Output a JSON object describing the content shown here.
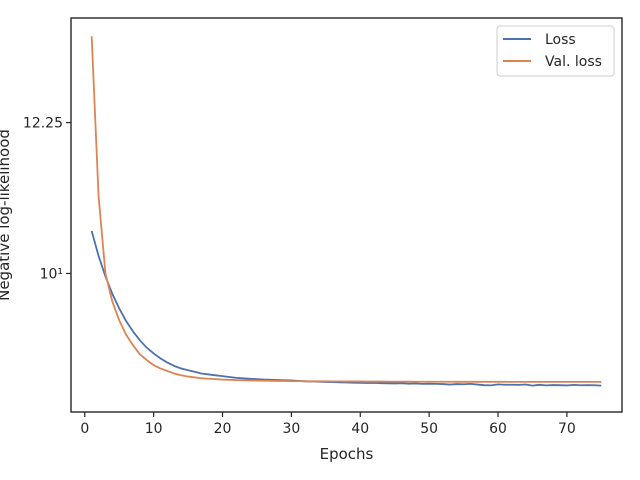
{
  "chart_data": {
    "type": "line",
    "title": "",
    "xlabel": "Epochs",
    "ylabel": "Negative log-likelihood",
    "yscale": "log",
    "xlim": [
      -2,
      78
    ],
    "ylim": [
      8.3,
      14.1
    ],
    "x_ticks": [
      0,
      10,
      20,
      30,
      40,
      50,
      60,
      70
    ],
    "x_tick_labels": [
      "0",
      "10",
      "20",
      "30",
      "40",
      "50",
      "60",
      "70"
    ],
    "y_ticks": [
      10.0,
      12.25
    ],
    "y_tick_labels": [
      "10¹",
      "12.25"
    ],
    "grid": false,
    "legend_position": "upper right",
    "x": [
      1,
      2,
      3,
      4,
      5,
      6,
      7,
      8,
      9,
      10,
      11,
      12,
      13,
      14,
      15,
      16,
      17,
      18,
      19,
      20,
      21,
      22,
      23,
      24,
      25,
      26,
      27,
      28,
      29,
      30,
      31,
      32,
      33,
      34,
      35,
      36,
      37,
      38,
      39,
      40,
      41,
      42,
      43,
      44,
      45,
      46,
      47,
      48,
      49,
      50,
      51,
      52,
      53,
      54,
      55,
      56,
      57,
      58,
      59,
      60,
      61,
      62,
      63,
      64,
      65,
      66,
      67,
      68,
      69,
      70,
      71,
      72,
      73,
      74,
      75
    ],
    "series": [
      {
        "name": "Loss",
        "color": "#4c72b0",
        "values": [
          10.59,
          10.24,
          9.96,
          9.73,
          9.54,
          9.38,
          9.25,
          9.14,
          9.05,
          8.98,
          8.92,
          8.87,
          8.83,
          8.8,
          8.78,
          8.76,
          8.74,
          8.73,
          8.72,
          8.71,
          8.7,
          8.69,
          8.685,
          8.68,
          8.675,
          8.67,
          8.668,
          8.665,
          8.662,
          8.66,
          8.655,
          8.65,
          8.648,
          8.645,
          8.642,
          8.64,
          8.638,
          8.636,
          8.634,
          8.632,
          8.63,
          8.632,
          8.628,
          8.626,
          8.625,
          8.627,
          8.622,
          8.625,
          8.62,
          8.622,
          8.62,
          8.618,
          8.612,
          8.618,
          8.616,
          8.62,
          8.612,
          8.605,
          8.603,
          8.614,
          8.61,
          8.61,
          8.608,
          8.613,
          8.6,
          8.609,
          8.603,
          8.606,
          8.605,
          8.602,
          8.608,
          8.604,
          8.605,
          8.604,
          8.6
        ]
      },
      {
        "name": "Val. loss",
        "color": "#dd8452",
        "values": [
          13.76,
          11.1,
          10.0,
          9.63,
          9.39,
          9.21,
          9.08,
          8.97,
          8.9,
          8.84,
          8.8,
          8.77,
          8.74,
          8.72,
          8.705,
          8.695,
          8.685,
          8.68,
          8.675,
          8.67,
          8.667,
          8.664,
          8.662,
          8.66,
          8.658,
          8.656,
          8.655,
          8.654,
          8.653,
          8.652,
          8.652,
          8.651,
          8.65,
          8.65,
          8.65,
          8.649,
          8.649,
          8.648,
          8.648,
          8.648,
          8.647,
          8.647,
          8.647,
          8.646,
          8.646,
          8.646,
          8.646,
          8.645,
          8.645,
          8.645,
          8.645,
          8.645,
          8.645,
          8.644,
          8.644,
          8.644,
          8.644,
          8.644,
          8.644,
          8.644,
          8.644,
          8.643,
          8.643,
          8.643,
          8.643,
          8.643,
          8.643,
          8.643,
          8.643,
          8.643,
          8.643,
          8.643,
          8.643,
          8.643,
          8.643
        ]
      }
    ]
  }
}
